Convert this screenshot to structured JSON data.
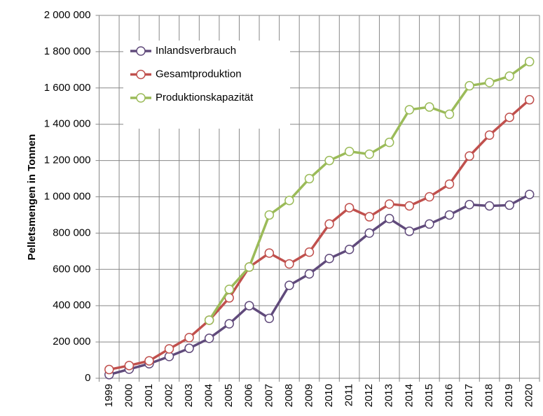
{
  "chart_data": {
    "type": "line",
    "y_label": "Pelletsmengen in Tonnen",
    "categories": [
      "1999",
      "2000",
      "2001",
      "2002",
      "2003",
      "2004",
      "2005",
      "2006",
      "2007",
      "2008",
      "2009",
      "2010",
      "2011",
      "2012",
      "2013",
      "2014",
      "2015",
      "2016",
      "2017",
      "2018",
      "2019",
      "2020"
    ],
    "series": [
      {
        "name": "Inlandsverbrauch",
        "color": "#604a7b",
        "values": [
          20000,
          50000,
          80000,
          120000,
          165000,
          220000,
          300000,
          400000,
          330000,
          512000,
          575000,
          660000,
          710000,
          800000,
          880000,
          810000,
          850000,
          900000,
          957000,
          950000,
          954000,
          1013000
        ]
      },
      {
        "name": "Gesamtproduktion",
        "color": "#c0504d",
        "values": [
          48000,
          70000,
          96000,
          162000,
          224000,
          320000,
          443000,
          613000,
          690000,
          630000,
          695000,
          850000,
          940000,
          890000,
          960000,
          950000,
          1000000,
          1070000,
          1225000,
          1340000,
          1438000,
          1535000
        ]
      },
      {
        "name": "Produktionskapazität",
        "color": "#9bbb59",
        "values": [
          null,
          null,
          null,
          null,
          null,
          320000,
          490000,
          613000,
          900000,
          980000,
          1100000,
          1200000,
          1250000,
          1235000,
          1300000,
          1480000,
          1495000,
          1455000,
          1612000,
          1630000,
          1665000,
          1745000
        ]
      }
    ],
    "ylim": [
      0,
      2000000
    ],
    "yticks": [
      0,
      {
        "value": 200000,
        "label": "200 000"
      },
      {
        "value": 400000,
        "label": "400 000"
      },
      {
        "value": 600000,
        "label": "600 000"
      },
      {
        "value": 800000,
        "label": "800 000"
      },
      {
        "value": 1000000,
        "label": "1 000 000"
      },
      {
        "value": 1200000,
        "label": "1 200 000"
      },
      {
        "value": 1400000,
        "label": "1 400 000"
      },
      {
        "value": 1600000,
        "label": "1 600 000"
      },
      {
        "value": 1800000,
        "label": "1 800 000"
      },
      {
        "value": 2000000,
        "label": "2 000 000"
      }
    ],
    "grid": true,
    "legend": "upper left"
  }
}
